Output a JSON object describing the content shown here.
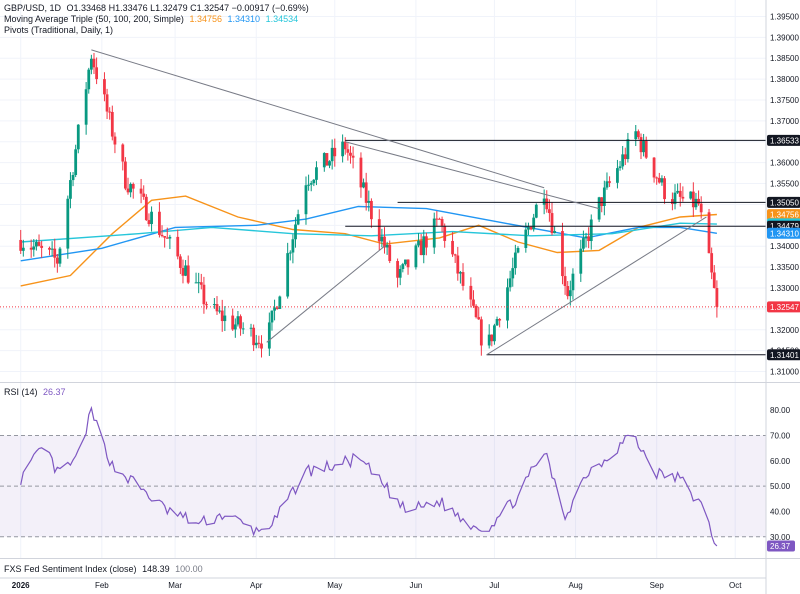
{
  "header": {
    "symbol": "GBP/USD, 1D",
    "ohlc": "O1.33468 H1.33476 L1.32479 C1.32547 −0.00917 (−0.69%)",
    "ma_title": "Moving Average Triple (50, 100, 200, Simple)",
    "ma_values": [
      "1.34756",
      "1.34310",
      "1.34534"
    ],
    "pivots_title": "Pivots (Traditional, Daily, 1)"
  },
  "rsi_panel": {
    "title": "RSI (14)",
    "value": "26.37"
  },
  "fxs_panel": {
    "title": "FXS Fed Sentiment Index (close)",
    "value1": "148.39",
    "value2": "100.00"
  },
  "colors": {
    "up": "#089981",
    "down": "#f23645",
    "ma50": "#f7931a",
    "ma100": "#2196f3",
    "ma200": "#26c6da",
    "rsi": "#7e57c2",
    "rsi_band": "#7e57c2",
    "trend": "#787b86",
    "pivot": "#131722"
  },
  "chart_data": [
    {
      "type": "candlestick",
      "title": "GBP/USD, 1D",
      "y_ticks": [
        "1.39500",
        "1.39000",
        "1.38500",
        "1.38000",
        "1.37500",
        "1.37000",
        "1.36500",
        "1.36000",
        "1.35500",
        "1.35000",
        "1.34500",
        "1.34000",
        "1.33500",
        "1.33000",
        "1.32500",
        "1.32000",
        "1.31500",
        "1.31000"
      ],
      "x_ticks": [
        "2026",
        "Feb",
        "Mar",
        "Apr",
        "May",
        "Jun",
        "Jul",
        "Aug",
        "Sep",
        "Oct"
      ],
      "price_labels": [
        {
          "value": 1.36533,
          "text": "1.36533",
          "style": "dark"
        },
        {
          "value": 1.3505,
          "text": "1.35050",
          "style": "dark"
        },
        {
          "value": 1.34756,
          "text": "1.34756",
          "style": "ma50"
        },
        {
          "value": 1.34534,
          "text": "1.34534",
          "style": "ma200"
        },
        {
          "value": 1.34479,
          "text": "1.34479",
          "style": "dark"
        },
        {
          "value": 1.3431,
          "text": "1.34310",
          "style": "ma100"
        },
        {
          "value": 1.32547,
          "text": "1.32547",
          "style": "last"
        },
        {
          "value": 1.31401,
          "text": "1.31401",
          "style": "dark"
        }
      ],
      "key_points": [
        {
          "date": "2026-01-01",
          "price": 1.3415
        },
        {
          "date": "2026-01-15",
          "price": 1.3365
        },
        {
          "date": "2026-01-28",
          "price": 1.386
        },
        {
          "date": "2026-02-10",
          "price": 1.356
        },
        {
          "date": "2026-02-20",
          "price": 1.347
        },
        {
          "date": "2026-03-15",
          "price": 1.3245
        },
        {
          "date": "2026-04-05",
          "price": 1.317
        },
        {
          "date": "2026-04-20",
          "price": 1.356
        },
        {
          "date": "2026-05-05",
          "price": 1.364
        },
        {
          "date": "2026-05-25",
          "price": 1.332
        },
        {
          "date": "2026-06-10",
          "price": 1.346
        },
        {
          "date": "2026-06-28",
          "price": 1.315
        },
        {
          "date": "2026-07-10",
          "price": 1.338
        },
        {
          "date": "2026-07-20",
          "price": 1.354
        },
        {
          "date": "2026-07-29",
          "price": 1.329
        },
        {
          "date": "2026-08-10",
          "price": 1.35
        },
        {
          "date": "2026-08-24",
          "price": 1.367
        },
        {
          "date": "2026-09-05",
          "price": 1.352
        },
        {
          "date": "2026-09-17",
          "price": 1.35
        },
        {
          "date": "2026-09-24",
          "price": 1.3255
        }
      ],
      "moving_averages": {
        "ma50": [
          [
            "2026-01-01",
            1.3305
          ],
          [
            "2026-01-20",
            1.333
          ],
          [
            "2026-02-05",
            1.343
          ],
          [
            "2026-02-20",
            1.351
          ],
          [
            "2026-03-05",
            1.352
          ],
          [
            "2026-03-25",
            1.347
          ],
          [
            "2026-04-15",
            1.344
          ],
          [
            "2026-05-05",
            1.343
          ],
          [
            "2026-05-20",
            1.3405
          ],
          [
            "2026-06-10",
            1.342
          ],
          [
            "2026-06-25",
            1.345
          ],
          [
            "2026-07-10",
            1.341
          ],
          [
            "2026-07-25",
            1.3385
          ],
          [
            "2026-08-10",
            1.339
          ],
          [
            "2026-08-25",
            1.3445
          ],
          [
            "2026-09-10",
            1.347
          ],
          [
            "2026-09-24",
            1.3476
          ]
        ],
        "ma100": [
          [
            "2026-01-01",
            1.3365
          ],
          [
            "2026-02-01",
            1.3395
          ],
          [
            "2026-03-01",
            1.3445
          ],
          [
            "2026-04-01",
            1.345
          ],
          [
            "2026-04-20",
            1.3465
          ],
          [
            "2026-05-10",
            1.3495
          ],
          [
            "2026-06-05",
            1.349
          ],
          [
            "2026-07-05",
            1.3455
          ],
          [
            "2026-08-05",
            1.342
          ],
          [
            "2026-08-25",
            1.3445
          ],
          [
            "2026-09-10",
            1.3445
          ],
          [
            "2026-09-24",
            1.3431
          ]
        ],
        "ma200": [
          [
            "2026-01-01",
            1.341
          ],
          [
            "2026-02-15",
            1.343
          ],
          [
            "2026-03-15",
            1.3445
          ],
          [
            "2026-04-15",
            1.343
          ],
          [
            "2026-05-15",
            1.3425
          ],
          [
            "2026-06-15",
            1.3435
          ],
          [
            "2026-07-15",
            1.3425
          ],
          [
            "2026-08-15",
            1.343
          ],
          [
            "2026-09-10",
            1.3455
          ],
          [
            "2026-09-24",
            1.3453
          ]
        ]
      },
      "pivot_lines": [
        {
          "from": "2026-05-05",
          "to": "2026-09-24",
          "price": 1.36533
        },
        {
          "from": "2026-05-25",
          "to": "2026-09-24",
          "price": 1.3505
        },
        {
          "from": "2026-05-05",
          "to": "2026-09-24",
          "price": 1.34479
        },
        {
          "from": "2026-06-28",
          "to": "2026-09-24",
          "price": 1.31401
        }
      ],
      "trend_lines": [
        {
          "from": [
            "2026-01-28",
            1.387
          ],
          "to": [
            "2026-07-20",
            1.354
          ]
        },
        {
          "from": [
            "2026-05-05",
            1.365
          ],
          "to": [
            "2026-08-10",
            1.349
          ]
        },
        {
          "from": [
            "2026-04-05",
            1.317
          ],
          "to": [
            "2026-05-20",
            1.34
          ]
        },
        {
          "from": [
            "2026-06-28",
            1.314
          ],
          "to": [
            "2026-09-20",
            1.347
          ]
        }
      ],
      "ylim": [
        1.3075,
        1.3975
      ]
    },
    {
      "type": "line",
      "title": "RSI (14)",
      "y_ticks": [
        "80.00",
        "70.00",
        "60.00",
        "50.00",
        "40.00",
        "30.00"
      ],
      "band": [
        30,
        70
      ],
      "last_value": 26.37,
      "series": [
        {
          "values": [
            [
              "2026-01-01",
              53
            ],
            [
              "2026-01-10",
              66
            ],
            [
              "2026-01-15",
              55
            ],
            [
              "2026-01-22",
              60
            ],
            [
              "2026-01-28",
              79
            ],
            [
              "2026-02-05",
              58
            ],
            [
              "2026-02-15",
              50
            ],
            [
              "2026-02-25",
              41
            ],
            [
              "2026-03-10",
              35
            ],
            [
              "2026-03-20",
              39
            ],
            [
              "2026-04-01",
              32
            ],
            [
              "2026-04-08",
              36
            ],
            [
              "2026-04-20",
              56
            ],
            [
              "2026-05-01",
              58
            ],
            [
              "2026-05-10",
              61
            ],
            [
              "2026-05-20",
              50
            ],
            [
              "2026-05-28",
              40
            ],
            [
              "2026-06-10",
              44
            ],
            [
              "2026-06-20",
              36
            ],
            [
              "2026-06-28",
              33
            ],
            [
              "2026-07-10",
              46
            ],
            [
              "2026-07-20",
              64
            ],
            [
              "2026-07-28",
              38
            ],
            [
              "2026-08-05",
              55
            ],
            [
              "2026-08-15",
              63
            ],
            [
              "2026-08-22",
              71
            ],
            [
              "2026-09-01",
              55
            ],
            [
              "2026-09-10",
              53
            ],
            [
              "2026-09-18",
              42
            ],
            [
              "2026-09-24",
              26.37
            ]
          ]
        }
      ],
      "ylim": [
        24,
        84
      ]
    }
  ]
}
